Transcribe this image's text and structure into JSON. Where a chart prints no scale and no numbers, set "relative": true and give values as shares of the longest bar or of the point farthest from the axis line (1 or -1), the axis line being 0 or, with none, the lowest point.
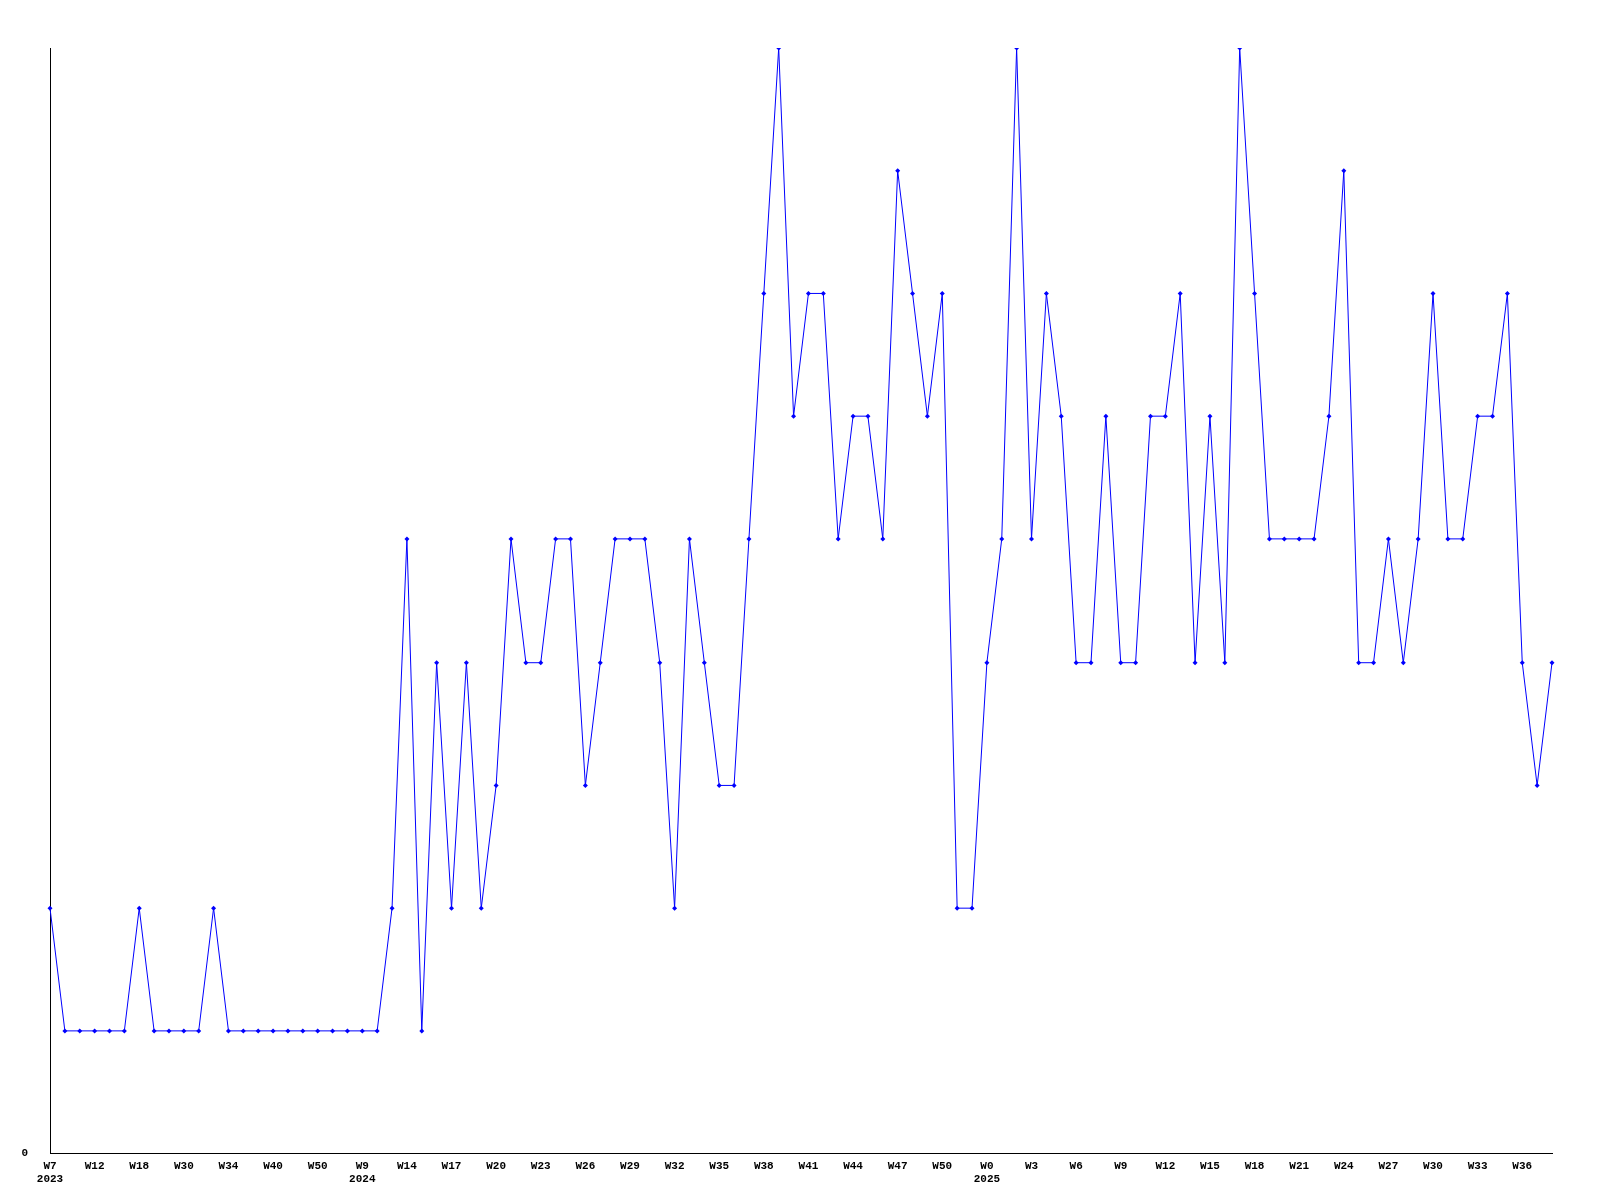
{
  "chart_data": {
    "type": "line",
    "relative": true,
    "color": "#0000ff",
    "marker": "diamond",
    "grid": false,
    "legend": false,
    "categories": [
      "W7\n2023",
      null,
      null,
      "W12",
      null,
      null,
      "W18",
      null,
      null,
      "W30",
      null,
      null,
      "W34",
      null,
      null,
      "W40",
      null,
      null,
      "W50",
      null,
      null,
      "W9\n2024",
      null,
      null,
      "W14",
      null,
      null,
      "W17",
      null,
      null,
      "W20",
      null,
      null,
      "W23",
      null,
      null,
      "W26",
      null,
      null,
      "W29",
      null,
      null,
      "W32",
      null,
      null,
      "W35",
      null,
      null,
      "W38",
      null,
      null,
      "W41",
      null,
      null,
      "W44",
      null,
      null,
      "W47",
      null,
      null,
      "W50",
      null,
      null,
      "W0\n2025",
      null,
      null,
      "W3",
      null,
      null,
      "W6",
      null,
      null,
      "W9",
      null,
      null,
      "W12",
      null,
      null,
      "W15",
      null,
      null,
      "W18",
      null,
      null,
      "W21",
      null,
      null,
      "W24",
      null,
      null,
      "W27",
      null,
      null,
      "W30",
      null,
      null,
      "W33",
      null,
      null,
      "W36",
      null,
      null
    ],
    "values": [
      0.222,
      0.111,
      0.111,
      0.111,
      0.111,
      0.111,
      0.222,
      0.111,
      0.111,
      0.111,
      0.111,
      0.222,
      0.111,
      0.111,
      0.111,
      0.111,
      0.111,
      0.111,
      0.111,
      0.111,
      0.111,
      0.111,
      0.111,
      0.222,
      0.556,
      0.111,
      0.444,
      0.222,
      0.444,
      0.222,
      0.333,
      0.556,
      0.444,
      0.444,
      0.556,
      0.556,
      0.333,
      0.444,
      0.556,
      0.556,
      0.556,
      0.444,
      0.222,
      0.556,
      0.444,
      0.333,
      0.333,
      0.556,
      0.778,
      1,
      0.667,
      0.778,
      0.778,
      0.556,
      0.667,
      0.667,
      0.556,
      0.889,
      0.778,
      0.667,
      0.778,
      0.222,
      0.222,
      0.444,
      0.556,
      1,
      0.556,
      0.778,
      0.667,
      0.444,
      0.444,
      0.667,
      0.444,
      0.444,
      0.667,
      0.667,
      0.778,
      0.444,
      0.667,
      0.444,
      1,
      0.778,
      0.556,
      0.556,
      0.556,
      0.556,
      0.667,
      0.889,
      0.444,
      0.444,
      0.556,
      0.444,
      0.556,
      0.778,
      0.556,
      0.556,
      0.667,
      0.667,
      0.778,
      0.444,
      0.333,
      0.444
    ],
    "annotations": [
      "0"
    ]
  }
}
